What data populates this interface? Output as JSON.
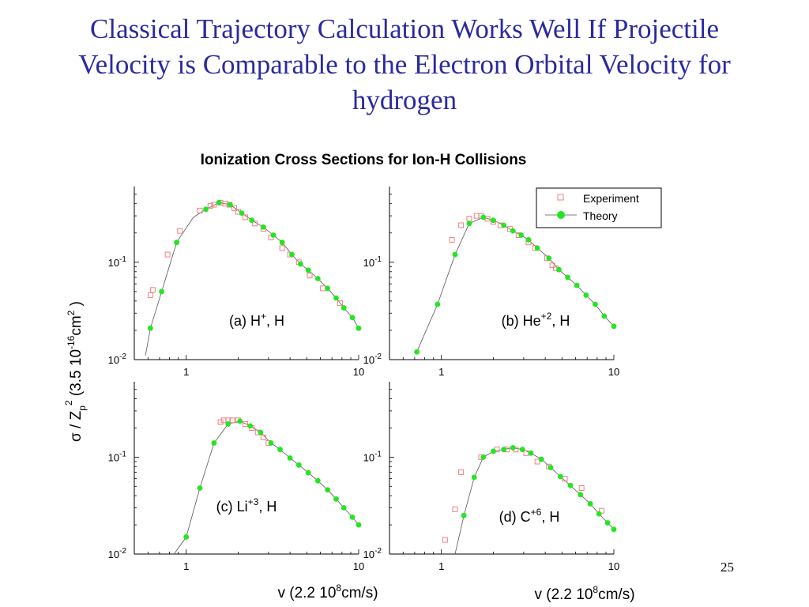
{
  "slide": {
    "title_lines": [
      "Classical Trajectory Calculation Works Well If Projectile",
      "Velocity is Comparable to the  Electron Orbital Velocity for",
      "hydrogen"
    ],
    "page_number": "25"
  },
  "figure": {
    "title": "Ionization Cross Sections for Ion-H Collisions",
    "ylabel": {
      "pre": "σ / Z",
      "sub": "p",
      "sup": "2",
      "mid": " (3.5 10",
      "exp": "-16",
      "unit": "cm",
      "unit_sup": "2",
      "post": " )"
    },
    "xlabel": {
      "pre": "v  (2.2 10",
      "exp": "8",
      "post": "cm/s)"
    },
    "legend": {
      "experiment": "Experiment",
      "theory": "Theory"
    },
    "colors": {
      "experiment": "#f08080",
      "theory": "#22e622",
      "line": "#555555"
    }
  },
  "chart_data": [
    {
      "type": "scatter",
      "panel_label": {
        "pre": "(a) H",
        "sup": "+",
        "post": ", H"
      },
      "x_scale": "log",
      "y_scale": "log",
      "xlim": [
        0.5,
        10
      ],
      "ylim": [
        0.01,
        0.6
      ],
      "xticks": [
        {
          "v": 1,
          "label": "1"
        },
        {
          "v": 10,
          "label": "10"
        }
      ],
      "yticks": [
        {
          "v": 0.1,
          "base": "10",
          "exp": "-1"
        },
        {
          "v": 0.01,
          "base": "10",
          "exp": "-2"
        }
      ],
      "series": [
        {
          "name": "Experiment",
          "marker": "open-square",
          "points": [
            [
              0.62,
              0.046
            ],
            [
              0.64,
              0.052
            ],
            [
              0.78,
              0.12
            ],
            [
              0.92,
              0.21
            ],
            [
              1.2,
              0.34
            ],
            [
              1.38,
              0.38
            ],
            [
              1.45,
              0.39
            ],
            [
              1.58,
              0.41
            ],
            [
              1.68,
              0.4
            ],
            [
              1.78,
              0.39
            ],
            [
              1.9,
              0.36
            ],
            [
              2.0,
              0.33
            ],
            [
              2.2,
              0.29
            ],
            [
              2.5,
              0.25
            ],
            [
              2.8,
              0.22
            ],
            [
              3.1,
              0.18
            ],
            [
              3.6,
              0.14
            ],
            [
              4.0,
              0.12
            ],
            [
              4.5,
              0.1
            ],
            [
              5.2,
              0.073
            ],
            [
              6.2,
              0.054
            ],
            [
              7.8,
              0.038
            ]
          ]
        },
        {
          "name": "Theory",
          "marker": "filled-circle",
          "points": [
            [
              0.62,
              0.021
            ],
            [
              0.72,
              0.05
            ],
            [
              0.88,
              0.16
            ],
            [
              1.3,
              0.35
            ],
            [
              1.55,
              0.41
            ],
            [
              1.8,
              0.39
            ],
            [
              2.1,
              0.32
            ],
            [
              2.4,
              0.27
            ],
            [
              2.8,
              0.23
            ],
            [
              3.2,
              0.19
            ],
            [
              3.6,
              0.16
            ],
            [
              4.1,
              0.12
            ],
            [
              4.6,
              0.096
            ],
            [
              5.1,
              0.083
            ],
            [
              5.8,
              0.068
            ],
            [
              6.6,
              0.054
            ],
            [
              7.4,
              0.043
            ],
            [
              8.2,
              0.034
            ],
            [
              9.2,
              0.027
            ],
            [
              10,
              0.021
            ]
          ]
        },
        {
          "name": "Theory curve",
          "marker": "line",
          "points": [
            [
              0.58,
              0.011
            ],
            [
              0.62,
              0.021
            ],
            [
              0.72,
              0.05
            ],
            [
              0.88,
              0.16
            ],
            [
              1.1,
              0.29
            ],
            [
              1.3,
              0.35
            ],
            [
              1.55,
              0.41
            ],
            [
              1.8,
              0.39
            ],
            [
              2.1,
              0.32
            ],
            [
              2.4,
              0.27
            ],
            [
              2.8,
              0.23
            ],
            [
              3.2,
              0.19
            ],
            [
              3.6,
              0.16
            ],
            [
              4.1,
              0.12
            ],
            [
              4.6,
              0.096
            ],
            [
              5.1,
              0.083
            ],
            [
              5.8,
              0.068
            ],
            [
              6.6,
              0.054
            ],
            [
              7.4,
              0.043
            ],
            [
              8.2,
              0.034
            ],
            [
              9.2,
              0.027
            ],
            [
              10,
              0.021
            ]
          ]
        }
      ]
    },
    {
      "type": "scatter",
      "panel_label": {
        "pre": "(b) He",
        "sup": "+2",
        "post": ", H"
      },
      "x_scale": "log",
      "y_scale": "log",
      "xlim": [
        0.5,
        10
      ],
      "ylim": [
        0.01,
        0.6
      ],
      "xticks": [
        {
          "v": 1,
          "label": "1"
        },
        {
          "v": 10,
          "label": "10"
        }
      ],
      "yticks": [
        {
          "v": 0.1,
          "base": "10",
          "exp": "-1"
        },
        {
          "v": 0.01,
          "base": "10",
          "exp": "-2"
        }
      ],
      "series": [
        {
          "name": "Experiment",
          "marker": "open-square",
          "points": [
            [
              1.15,
              0.17
            ],
            [
              1.3,
              0.24
            ],
            [
              1.45,
              0.28
            ],
            [
              1.6,
              0.3
            ],
            [
              1.7,
              0.3
            ],
            [
              1.85,
              0.28
            ],
            [
              2.0,
              0.26
            ],
            [
              2.2,
              0.24
            ],
            [
              2.5,
              0.22
            ],
            [
              2.8,
              0.19
            ],
            [
              3.2,
              0.16
            ],
            [
              3.5,
              0.14
            ],
            [
              4.1,
              0.11
            ],
            [
              4.4,
              0.093
            ],
            [
              4.6,
              0.087
            ]
          ]
        },
        {
          "name": "Theory",
          "marker": "filled-circle",
          "points": [
            [
              0.72,
              0.012
            ],
            [
              0.95,
              0.037
            ],
            [
              1.2,
              0.12
            ],
            [
              1.45,
              0.25
            ],
            [
              1.75,
              0.29
            ],
            [
              2.0,
              0.27
            ],
            [
              2.3,
              0.24
            ],
            [
              2.6,
              0.21
            ],
            [
              2.9,
              0.19
            ],
            [
              3.2,
              0.17
            ],
            [
              3.6,
              0.14
            ],
            [
              4.2,
              0.11
            ],
            [
              4.8,
              0.084
            ],
            [
              5.4,
              0.07
            ],
            [
              6.1,
              0.058
            ],
            [
              6.9,
              0.046
            ],
            [
              7.8,
              0.037
            ],
            [
              8.8,
              0.028
            ],
            [
              10,
              0.022
            ]
          ]
        },
        {
          "name": "Theory curve",
          "marker": "line",
          "points": [
            [
              0.72,
              0.012
            ],
            [
              0.95,
              0.037
            ],
            [
              1.2,
              0.12
            ],
            [
              1.45,
              0.25
            ],
            [
              1.75,
              0.29
            ],
            [
              2.0,
              0.27
            ],
            [
              2.3,
              0.24
            ],
            [
              2.6,
              0.21
            ],
            [
              2.9,
              0.19
            ],
            [
              3.2,
              0.17
            ],
            [
              3.6,
              0.14
            ],
            [
              4.2,
              0.11
            ],
            [
              4.8,
              0.084
            ],
            [
              5.4,
              0.07
            ],
            [
              6.1,
              0.058
            ],
            [
              6.9,
              0.046
            ],
            [
              7.8,
              0.037
            ],
            [
              8.8,
              0.028
            ],
            [
              10,
              0.022
            ]
          ]
        }
      ]
    },
    {
      "type": "scatter",
      "panel_label": {
        "pre": "(c) Li",
        "sup": "+3",
        "post": ", H"
      },
      "x_scale": "log",
      "y_scale": "log",
      "xlim": [
        0.5,
        10
      ],
      "ylim": [
        0.01,
        0.6
      ],
      "xticks": [
        {
          "v": 1,
          "label": "1"
        },
        {
          "v": 10,
          "label": "10"
        }
      ],
      "yticks": [
        {
          "v": 0.1,
          "base": "10",
          "exp": "-1"
        },
        {
          "v": 0.01,
          "base": "10",
          "exp": "-2"
        }
      ],
      "series": [
        {
          "name": "Experiment",
          "marker": "open-square",
          "points": [
            [
              1.58,
              0.23
            ],
            [
              1.65,
              0.24
            ],
            [
              1.75,
              0.24
            ],
            [
              1.85,
              0.24
            ],
            [
              2.0,
              0.24
            ],
            [
              2.2,
              0.22
            ],
            [
              2.4,
              0.2
            ],
            [
              2.6,
              0.18
            ],
            [
              2.8,
              0.16
            ],
            [
              3.0,
              0.14
            ]
          ]
        },
        {
          "name": "Theory",
          "marker": "filled-circle",
          "points": [
            [
              1.0,
              0.015
            ],
            [
              1.2,
              0.048
            ],
            [
              1.45,
              0.14
            ],
            [
              1.75,
              0.22
            ],
            [
              2.05,
              0.235
            ],
            [
              2.35,
              0.21
            ],
            [
              2.7,
              0.18
            ],
            [
              3.1,
              0.14
            ],
            [
              3.5,
              0.12
            ],
            [
              4.0,
              0.098
            ],
            [
              4.5,
              0.083
            ],
            [
              5.1,
              0.069
            ],
            [
              5.8,
              0.057
            ],
            [
              6.6,
              0.046
            ],
            [
              7.4,
              0.037
            ],
            [
              8.2,
              0.03
            ],
            [
              9.2,
              0.024
            ],
            [
              10,
              0.02
            ]
          ]
        },
        {
          "name": "Theory curve",
          "marker": "line",
          "points": [
            [
              0.85,
              0.01
            ],
            [
              1.0,
              0.015
            ],
            [
              1.2,
              0.048
            ],
            [
              1.45,
              0.14
            ],
            [
              1.75,
              0.22
            ],
            [
              2.05,
              0.235
            ],
            [
              2.35,
              0.21
            ],
            [
              2.7,
              0.18
            ],
            [
              3.1,
              0.14
            ],
            [
              3.5,
              0.12
            ],
            [
              4.0,
              0.098
            ],
            [
              4.5,
              0.083
            ],
            [
              5.1,
              0.069
            ],
            [
              5.8,
              0.057
            ],
            [
              6.6,
              0.046
            ],
            [
              7.4,
              0.037
            ],
            [
              8.2,
              0.03
            ],
            [
              9.2,
              0.024
            ],
            [
              10,
              0.02
            ]
          ]
        }
      ]
    },
    {
      "type": "scatter",
      "panel_label": {
        "pre": "(d) C",
        "sup": "+6",
        "post": ", H"
      },
      "x_scale": "log",
      "y_scale": "log",
      "xlim": [
        0.5,
        10
      ],
      "ylim": [
        0.01,
        0.6
      ],
      "xticks": [
        {
          "v": 1,
          "label": "1"
        },
        {
          "v": 10,
          "label": "10"
        }
      ],
      "yticks": [
        {
          "v": 0.1,
          "base": "10",
          "exp": "-1"
        },
        {
          "v": 0.01,
          "base": "10",
          "exp": "-2"
        }
      ],
      "series": [
        {
          "name": "Experiment",
          "marker": "open-square",
          "points": [
            [
              1.05,
              0.014
            ],
            [
              1.2,
              0.029
            ],
            [
              1.3,
              0.07
            ],
            [
              1.7,
              0.1
            ],
            [
              2.1,
              0.12
            ],
            [
              2.4,
              0.12
            ],
            [
              2.7,
              0.12
            ],
            [
              3.1,
              0.11
            ],
            [
              3.6,
              0.09
            ],
            [
              4.2,
              0.08
            ],
            [
              5.2,
              0.06
            ],
            [
              6.5,
              0.048
            ],
            [
              8.5,
              0.028
            ]
          ]
        },
        {
          "name": "Theory",
          "marker": "filled-circle",
          "points": [
            [
              1.35,
              0.025
            ],
            [
              1.55,
              0.062
            ],
            [
              1.75,
              0.1
            ],
            [
              2.0,
              0.115
            ],
            [
              2.3,
              0.12
            ],
            [
              2.6,
              0.125
            ],
            [
              2.95,
              0.12
            ],
            [
              3.3,
              0.11
            ],
            [
              3.8,
              0.095
            ],
            [
              4.3,
              0.078
            ],
            [
              4.9,
              0.063
            ],
            [
              5.6,
              0.051
            ],
            [
              6.4,
              0.041
            ],
            [
              7.3,
              0.033
            ],
            [
              8.2,
              0.026
            ],
            [
              9.2,
              0.021
            ],
            [
              10,
              0.018
            ]
          ]
        },
        {
          "name": "Theory curve",
          "marker": "line",
          "points": [
            [
              1.2,
              0.01
            ],
            [
              1.35,
              0.025
            ],
            [
              1.55,
              0.062
            ],
            [
              1.75,
              0.1
            ],
            [
              2.0,
              0.115
            ],
            [
              2.3,
              0.12
            ],
            [
              2.6,
              0.125
            ],
            [
              2.95,
              0.12
            ],
            [
              3.3,
              0.11
            ],
            [
              3.8,
              0.095
            ],
            [
              4.3,
              0.078
            ],
            [
              4.9,
              0.063
            ],
            [
              5.6,
              0.051
            ],
            [
              6.4,
              0.041
            ],
            [
              7.3,
              0.033
            ],
            [
              8.2,
              0.026
            ],
            [
              9.2,
              0.021
            ],
            [
              10,
              0.018
            ]
          ]
        }
      ]
    }
  ]
}
